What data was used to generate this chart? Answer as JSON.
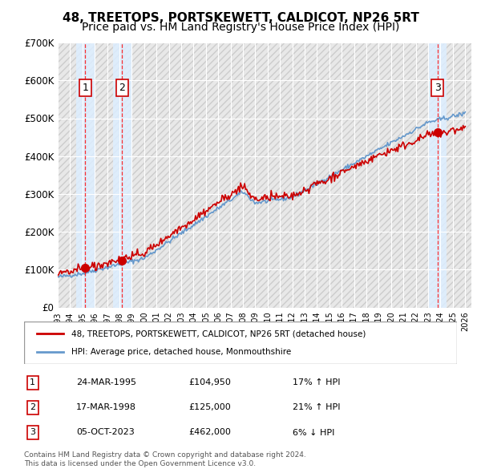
{
  "title": "48, TREETOPS, PORTSKEWETT, CALDICOT, NP26 5RT",
  "subtitle": "Price paid vs. HM Land Registry's House Price Index (HPI)",
  "ylabel": "",
  "ylim": [
    0,
    700000
  ],
  "yticks": [
    0,
    100000,
    200000,
    300000,
    400000,
    500000,
    600000,
    700000
  ],
  "ytick_labels": [
    "£0",
    "£100K",
    "£200K",
    "£300K",
    "£400K",
    "£500K",
    "£600K",
    "£700K"
  ],
  "xlim_start": 1993.0,
  "xlim_end": 2026.5,
  "hpi_color": "#6699cc",
  "price_color": "#cc0000",
  "marker_color": "#cc0000",
  "bg_hatch_color": "#dddddd",
  "sale_dates": [
    1995.23,
    1998.21,
    2023.76
  ],
  "sale_prices": [
    104950,
    125000,
    462000
  ],
  "sale_labels": [
    "1",
    "2",
    "3"
  ],
  "legend_label_red": "48, TREETOPS, PORTSKEWETT, CALDICOT, NP26 5RT (detached house)",
  "legend_label_blue": "HPI: Average price, detached house, Monmouthshire",
  "table_data": [
    [
      "1",
      "24-MAR-1995",
      "£104,950",
      "17% ↑ HPI"
    ],
    [
      "2",
      "17-MAR-1998",
      "£125,000",
      "21% ↑ HPI"
    ],
    [
      "3",
      "05-OCT-2023",
      "£462,000",
      "6% ↓ HPI"
    ]
  ],
  "footnote": "Contains HM Land Registry data © Crown copyright and database right 2024.\nThis data is licensed under the Open Government Licence v3.0.",
  "title_fontsize": 11,
  "subtitle_fontsize": 10
}
